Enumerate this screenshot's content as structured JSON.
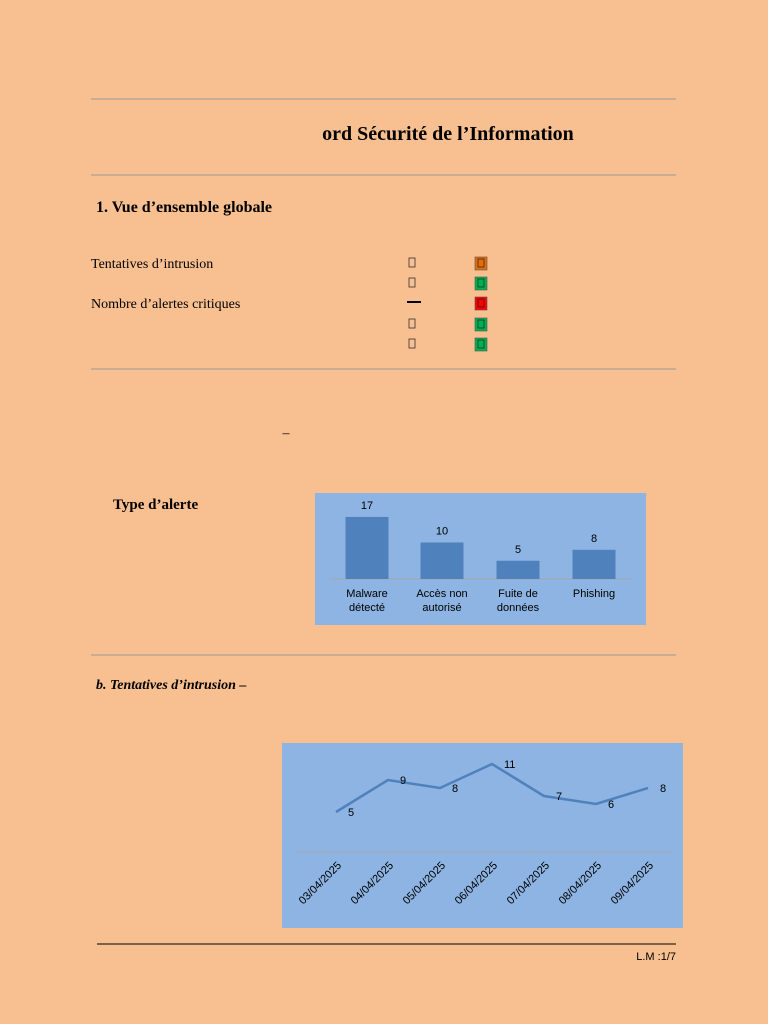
{
  "header": {
    "title": "ord Sécurité de l’Information"
  },
  "section1": {
    "heading": "1. Vue d’ensemble globale",
    "rows": [
      "Tentatives d’intrusion",
      "Nombre d’alertes critiques"
    ],
    "status_colors": [
      "#e46c0a",
      "#00b050",
      "#ff0000",
      "#00b050",
      "#00b050"
    ]
  },
  "section2": {
    "dash": "–",
    "label": "Type d’alerte"
  },
  "section3": {
    "heading": "b. Tentatives d’intrusion –"
  },
  "chart_data": [
    {
      "type": "bar",
      "categories": [
        "Malware détecté",
        "Accès non autorisé",
        "Fuite de données",
        "Phishing"
      ],
      "values": [
        17,
        10,
        5,
        8
      ],
      "color": "#4f81bd",
      "ylim": [
        0,
        20
      ]
    },
    {
      "type": "line",
      "x": [
        "03/04/2025",
        "04/04/2025",
        "05/04/2025",
        "06/04/2025",
        "07/04/2025",
        "08/04/2025",
        "09/04/2025"
      ],
      "values": [
        5,
        9,
        8,
        11,
        7,
        6,
        8
      ],
      "color": "#4f81bd",
      "ylim": [
        0,
        12
      ]
    }
  ],
  "footer": {
    "page": "L.M :1/7"
  }
}
